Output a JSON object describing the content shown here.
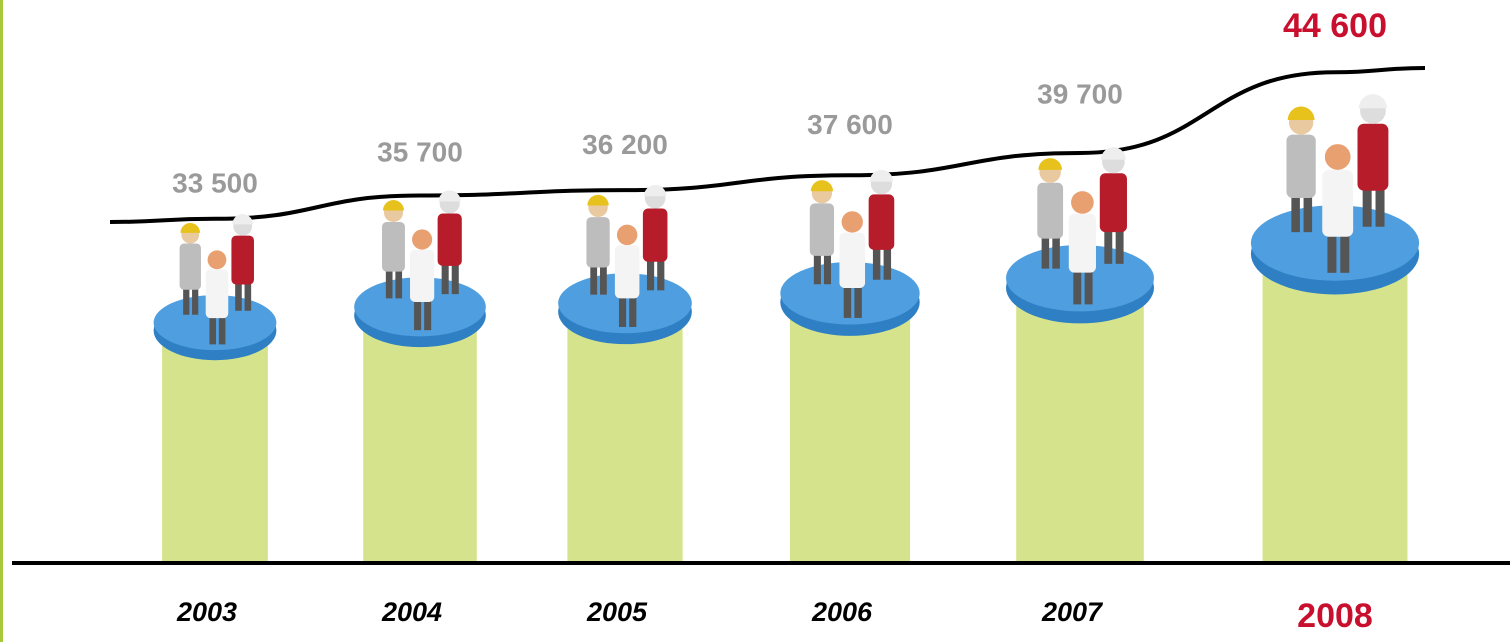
{
  "chart_data": {
    "type": "bar",
    "categories": [
      "2003",
      "2004",
      "2005",
      "2006",
      "2007",
      "2008"
    ],
    "values": [
      33500,
      35700,
      36200,
      37600,
      39700,
      44600
    ],
    "value_labels": [
      "33 500",
      "35 700",
      "36 200",
      "37 600",
      "39 700",
      "44 600"
    ],
    "color": "#d5e48c",
    "disk_color": "#4f9fe0",
    "label_color": "#9a9a9a",
    "highlight_color": "#c8102e"
  }
}
